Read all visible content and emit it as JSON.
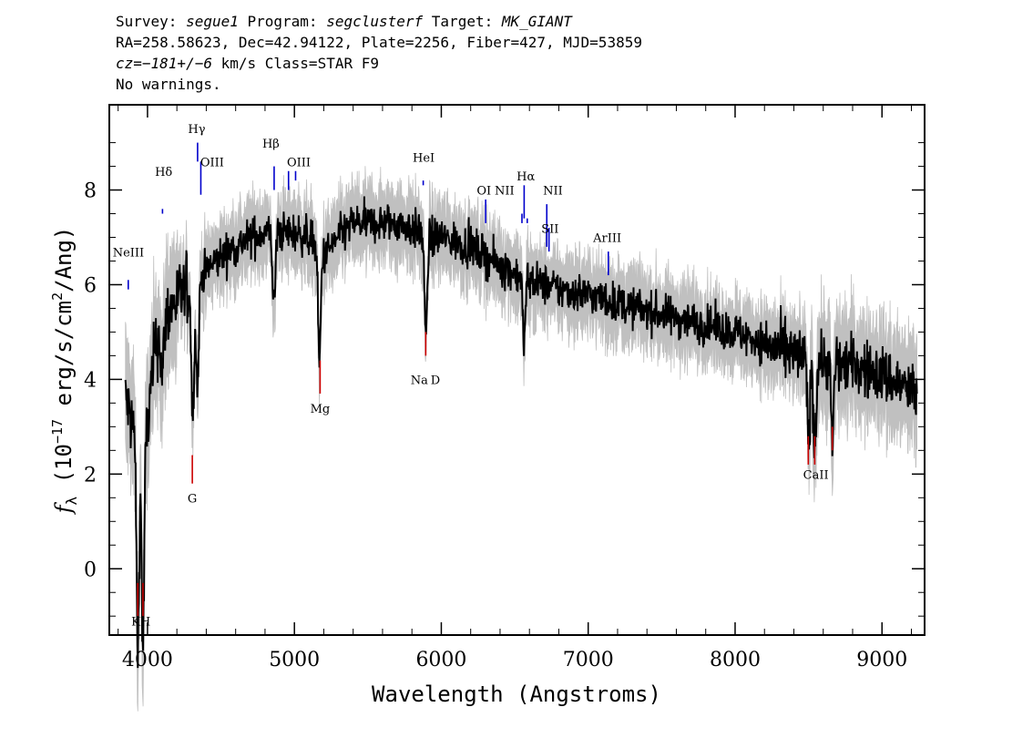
{
  "header": {
    "line1": {
      "survey_label": "Survey: ",
      "survey": "segue1",
      "program_label": " Program: ",
      "program": "segclusterf",
      "target_label": " Target: ",
      "target": "MK_GIANT"
    },
    "line2": "RA=258.58623, Dec=42.94122, Plate=2256, Fiber=427, MJD=53859",
    "line3": {
      "cz": "cz=−181+/−6",
      "rest": " km/s Class=STAR F9"
    },
    "line4": "No warnings."
  },
  "chart_data": {
    "type": "line",
    "xlabel": "Wavelength (Angstroms)",
    "ylabel_parts": {
      "f": "f",
      "sub": "λ",
      "a": " (10",
      "exp": "−17",
      "b": " erg/s/cm",
      "exp2": "2",
      "c": "/Ang)"
    },
    "xlim": [
      3740,
      9290
    ],
    "ylim": [
      -1.4,
      9.8
    ],
    "xticks": [
      4000,
      5000,
      6000,
      7000,
      8000,
      9000
    ],
    "yticks": [
      0,
      2,
      4,
      6,
      8
    ],
    "series_colors": {
      "flux": "#000000",
      "error": "#c0c0c0",
      "emission": "#0000cc",
      "absorption": "#cc0000"
    },
    "continuum": {
      "x": [
        3850,
        3900,
        3950,
        4000,
        4050,
        4100,
        4200,
        4300,
        4400,
        4500,
        4600,
        4700,
        4800,
        4900,
        5000,
        5100,
        5200,
        5300,
        5400,
        5500,
        5600,
        5700,
        5800,
        5900,
        6000,
        6200,
        6400,
        6600,
        6800,
        7000,
        7200,
        7400,
        7600,
        7800,
        8000,
        8200,
        8400,
        8600,
        8800,
        9000,
        9240
      ],
      "y": [
        3.6,
        3.0,
        2.8,
        3.0,
        4.6,
        5.2,
        5.7,
        5.9,
        6.3,
        6.6,
        6.8,
        7.0,
        7.1,
        7.1,
        7.1,
        7.0,
        6.6,
        7.0,
        7.3,
        7.3,
        7.3,
        7.3,
        7.2,
        7.0,
        7.0,
        6.8,
        6.4,
        6.1,
        5.9,
        5.8,
        5.6,
        5.45,
        5.3,
        5.15,
        5.0,
        4.75,
        4.5,
        4.4,
        4.3,
        4.1,
        3.7
      ]
    },
    "absorption_features": [
      {
        "x": 3934,
        "depth": 4.5
      },
      {
        "x": 3969,
        "depth": 4.5
      },
      {
        "x": 4101,
        "depth": 1.2
      },
      {
        "x": 4308,
        "depth": 2.8
      },
      {
        "x": 4340,
        "depth": 2.2
      },
      {
        "x": 4861,
        "depth": 1.6
      },
      {
        "x": 5170,
        "depth": 2.4
      },
      {
        "x": 5895,
        "depth": 2.2
      },
      {
        "x": 6563,
        "depth": 1.4
      },
      {
        "x": 8500,
        "depth": 1.8
      },
      {
        "x": 8542,
        "depth": 1.9
      },
      {
        "x": 8662,
        "depth": 1.7
      }
    ],
    "emission_lines": [
      {
        "label": "NeIII",
        "x": 3869,
        "y1": 6.1,
        "y2": 5.9
      },
      {
        "label": "Hδ",
        "x": 4102,
        "y1": 7.6,
        "y2": 7.5
      },
      {
        "label": "Hγ",
        "x": 4341,
        "y1": 8.6,
        "y2": 9.0
      },
      {
        "label": "OIII",
        "x": 4363,
        "y1": 7.9,
        "y2": 8.6
      },
      {
        "label": "Hβ",
        "x": 4862,
        "y1": 8.5,
        "y2": 8.0
      },
      {
        "label": "OIII",
        "x": 4960,
        "y1": 8.4,
        "y2": 8.0
      },
      {
        "label": "OIII",
        "x": 5008,
        "y1": 8.4,
        "y2": 8.2
      },
      {
        "label": "HeI",
        "x": 5877,
        "y1": 8.1,
        "y2": 8.2
      },
      {
        "label": "OI",
        "x": 6302,
        "y1": 7.8,
        "y2": 7.3
      },
      {
        "label": "NII",
        "x": 6549,
        "y1": 7.5,
        "y2": 7.3
      },
      {
        "label": "Hα",
        "x": 6564,
        "y1": 8.1,
        "y2": 7.4
      },
      {
        "label": "NII",
        "x": 6585,
        "y1": 7.3,
        "y2": 7.4
      },
      {
        "label": "SII",
        "x": 6718,
        "y1": 7.7,
        "y2": 6.8
      },
      {
        "label": "SII",
        "x": 6733,
        "y1": 7.2,
        "y2": 6.7
      },
      {
        "label": "ArIII",
        "x": 7137,
        "y1": 6.2,
        "y2": 6.7
      }
    ],
    "emission_labels": [
      {
        "text": "NeIII",
        "x": 3870,
        "y": 6.6
      },
      {
        "text": "Hδ",
        "x": 4110,
        "y": 8.3
      },
      {
        "text": "Hγ",
        "x": 4335,
        "y": 9.2
      },
      {
        "text": "OIII",
        "x": 4440,
        "y": 8.5
      },
      {
        "text": "Hβ",
        "x": 4840,
        "y": 8.9
      },
      {
        "text": "OIII",
        "x": 5030,
        "y": 8.5
      },
      {
        "text": "HeI",
        "x": 5880,
        "y": 8.6
      },
      {
        "text": "OI",
        "x": 6290,
        "y": 7.9
      },
      {
        "text": "NII",
        "x": 6430,
        "y": 7.9
      },
      {
        "text": "Hα",
        "x": 6575,
        "y": 8.2
      },
      {
        "text": "NII",
        "x": 6760,
        "y": 7.9
      },
      {
        "text": "SII",
        "x": 6740,
        "y": 7.1
      },
      {
        "text": "ArIII",
        "x": 7130,
        "y": 6.9
      }
    ],
    "absorption_lines": [
      {
        "x": 3934,
        "y1": -1.0,
        "y2": -0.3
      },
      {
        "x": 3969,
        "y1": -1.0,
        "y2": -0.3
      },
      {
        "x": 4305,
        "y1": 1.8,
        "y2": 2.4
      },
      {
        "x": 5175,
        "y1": 3.7,
        "y2": 4.4
      },
      {
        "x": 5894,
        "y1": 4.5,
        "y2": 5.0
      },
      {
        "x": 8498,
        "y1": 2.2,
        "y2": 2.8
      },
      {
        "x": 8542,
        "y1": 2.2,
        "y2": 2.8
      },
      {
        "x": 8662,
        "y1": 2.5,
        "y2": 3.0
      }
    ],
    "absorption_labels": [
      {
        "text": "K",
        "x": 3920,
        "y": -1.2
      },
      {
        "text": "H",
        "x": 3985,
        "y": -1.2
      },
      {
        "text": "G",
        "x": 4305,
        "y": 1.4
      },
      {
        "text": "Mg",
        "x": 5175,
        "y": 3.3
      },
      {
        "text": "Na",
        "x": 5850,
        "y": 3.9
      },
      {
        "text": "D",
        "x": 5960,
        "y": 3.9
      },
      {
        "text": "CaII",
        "x": 8550,
        "y": 1.9
      }
    ]
  }
}
